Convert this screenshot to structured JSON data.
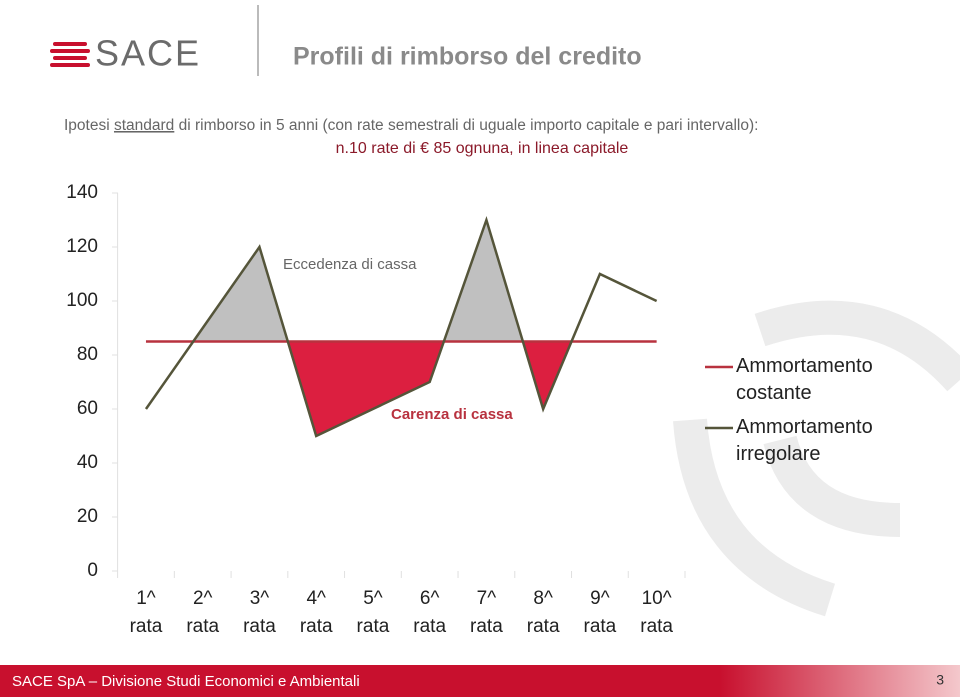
{
  "header": {
    "logo": "SACE",
    "title": "Profili di rimborso del credito",
    "subtitle_before": "Ipotesi ",
    "subtitle_underlined": "standard",
    "subtitle_after": " di rimborso in 5 anni (con rate semestrali di uguale importo capitale e pari intervallo):"
  },
  "chart_data": {
    "type": "line",
    "subtitle": "n.10 rate di € 85 ognuna, in linea capitale",
    "categories": [
      "1^ rata",
      "2^ rata",
      "3^ rata",
      "4^ rata",
      "5^ rata",
      "6^ rata",
      "7^ rata",
      "8^ rata",
      "9^ rata",
      "10^ rata"
    ],
    "series": [
      {
        "name": "Ammortamento costante",
        "color": "#b8323f",
        "values": [
          85,
          85,
          85,
          85,
          85,
          85,
          85,
          85,
          85,
          85
        ]
      },
      {
        "name": "Ammortamento irregolare",
        "color": "#55553a",
        "values": [
          60,
          90,
          120,
          50,
          60,
          70,
          130,
          60,
          110,
          100
        ]
      }
    ],
    "annotations": [
      "Eccedenza di cassa",
      "Carenza di cassa"
    ],
    "excess_color": "#c0c0c0",
    "shortfall_color": "#dc1f40",
    "ylim": [
      0,
      140
    ],
    "yticks": [
      0,
      20,
      40,
      60,
      80,
      100,
      120,
      140
    ],
    "grid": false,
    "legend": "right"
  },
  "footer": {
    "text": "SACE SpA – Divisione Studi Economici e Ambientali",
    "page": 3
  }
}
